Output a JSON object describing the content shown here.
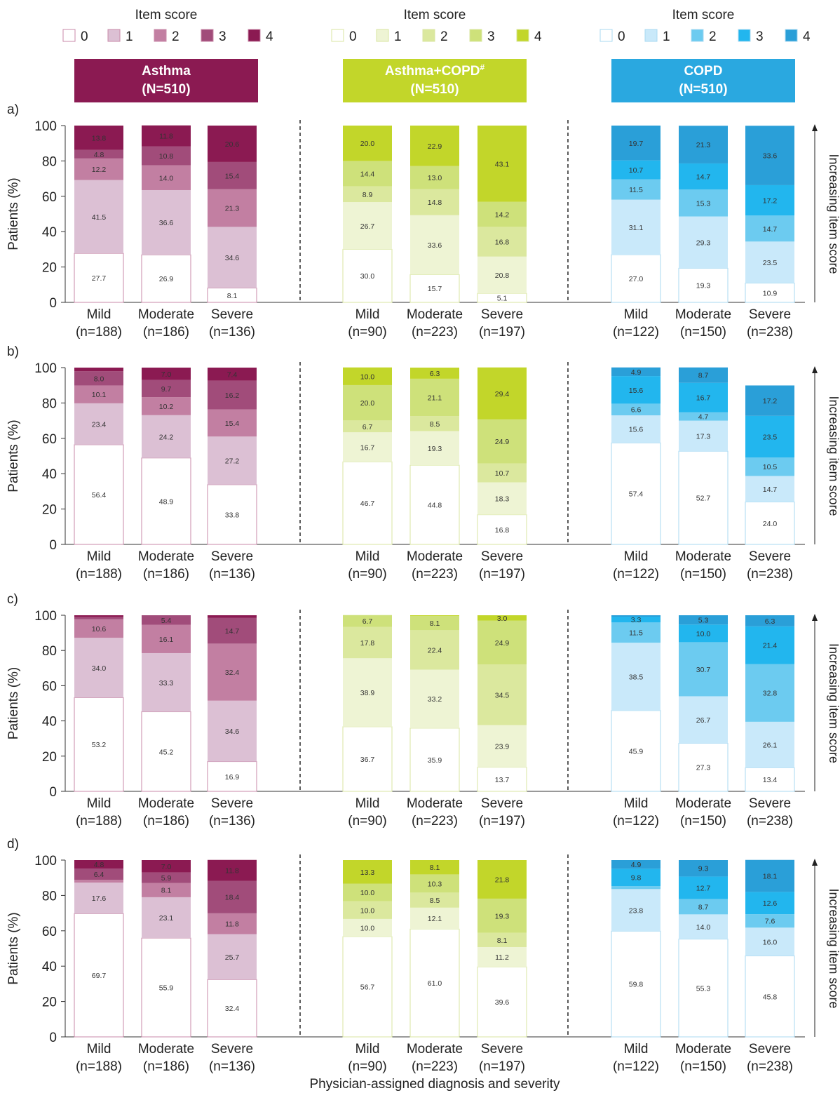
{
  "figure": {
    "legend_title": "Item score",
    "score_labels": [
      "0",
      "1",
      "2",
      "3",
      "4"
    ],
    "right_axis_label": "Increasing item score",
    "x_axis_title": "Physician-assigned diagnosis and severity"
  },
  "groups": [
    {
      "name": "Asthma",
      "n_label": "(N=510)",
      "header_color": "#8b1a52",
      "colors": [
        "#ffffff",
        "#dcc0d4",
        "#c27fa2",
        "#a14c7a",
        "#8b1a52"
      ],
      "edge_color": "#c98aa8",
      "categories": [
        {
          "name": "Mild",
          "n": "(n=188)"
        },
        {
          "name": "Moderate",
          "n": "(n=186)"
        },
        {
          "name": "Severe",
          "n": "(n=136)"
        }
      ]
    },
    {
      "name": "Asthma+COPD",
      "name_sup": "#",
      "n_label": "(N=510)",
      "header_color": "#c2d62a",
      "colors": [
        "#ffffff",
        "#eef4d4",
        "#dbe89e",
        "#cee17a",
        "#c2d62a"
      ],
      "edge_color": "#d8e6a0",
      "categories": [
        {
          "name": "Mild",
          "n": "(n=90)"
        },
        {
          "name": "Moderate",
          "n": "(n=223)"
        },
        {
          "name": "Severe",
          "n": "(n=197)"
        }
      ]
    },
    {
      "name": "COPD",
      "n_label": "(N=510)",
      "header_color": "#2aa8e0",
      "colors": [
        "#ffffff",
        "#c9e9fa",
        "#6ccbf0",
        "#22b6ee",
        "#2a9fd8"
      ],
      "edge_color": "#a8d9f2",
      "categories": [
        {
          "name": "Mild",
          "n": "(n=122)"
        },
        {
          "name": "Moderate",
          "n": "(n=150)"
        },
        {
          "name": "Severe",
          "n": "(n=238)"
        }
      ]
    }
  ],
  "chart_data": [
    {
      "type": "bar",
      "stacked": true,
      "panel_label": "a)",
      "ylabel": "Patients (%)",
      "ylim": [
        0,
        100
      ],
      "yticks": [
        0,
        20,
        40,
        60,
        80,
        100
      ],
      "bars": [
        {
          "values": [
            27.7,
            41.5,
            12.2,
            4.8,
            13.8
          ],
          "labels": [
            "27.7",
            "41.5",
            "12.2",
            "4.8",
            "13.8"
          ]
        },
        {
          "values": [
            26.9,
            36.6,
            14.0,
            10.8,
            11.8
          ],
          "labels": [
            "26.9",
            "36.6",
            "14.0",
            "10.8",
            "11.8"
          ]
        },
        {
          "values": [
            8.1,
            34.6,
            21.3,
            15.4,
            20.6
          ],
          "labels": [
            "8.1",
            "34.6",
            "21.3",
            "15.4",
            "20.6"
          ]
        },
        {
          "values": [
            30.0,
            26.7,
            8.9,
            14.4,
            20.0
          ],
          "labels": [
            "30.0",
            "26.7",
            "8.9",
            "14.4",
            "20.0"
          ]
        },
        {
          "values": [
            15.7,
            33.6,
            14.8,
            13.0,
            22.9
          ],
          "labels": [
            "15.7",
            "33.6",
            "14.8",
            "13.0",
            "22.9"
          ]
        },
        {
          "values": [
            5.1,
            20.8,
            16.8,
            14.2,
            43.1
          ],
          "labels": [
            "5.1",
            "20.8",
            "16.8",
            "14.2",
            "43.1"
          ]
        },
        {
          "values": [
            27.0,
            31.1,
            11.5,
            10.7,
            19.7
          ],
          "labels": [
            "27.0",
            "31.1",
            "11.5",
            "10.7",
            "19.7"
          ]
        },
        {
          "values": [
            19.3,
            29.3,
            15.3,
            14.7,
            21.3
          ],
          "labels": [
            "19.3",
            "29.3",
            "15.3",
            "14.7",
            "21.3"
          ]
        },
        {
          "values": [
            10.9,
            23.5,
            14.7,
            17.2,
            33.6
          ],
          "labels": [
            "10.9",
            "23.5",
            "14.7",
            "17.2",
            "33.6"
          ]
        }
      ]
    },
    {
      "type": "bar",
      "stacked": true,
      "panel_label": "b)",
      "ylabel": "Patients (%)",
      "ylim": [
        0,
        100
      ],
      "yticks": [
        0,
        20,
        40,
        60,
        80,
        100
      ],
      "bars": [
        {
          "values": [
            56.4,
            23.4,
            10.1,
            8.0,
            2.1
          ],
          "labels": [
            "56.4",
            "23.4",
            "10.1",
            "8.0",
            ""
          ]
        },
        {
          "values": [
            48.9,
            24.2,
            10.2,
            9.7,
            7.0
          ],
          "labels": [
            "48.9",
            "24.2",
            "10.2",
            "9.7",
            "7.0"
          ]
        },
        {
          "values": [
            33.8,
            27.2,
            15.4,
            16.2,
            7.4
          ],
          "labels": [
            "33.8",
            "27.2",
            "15.4",
            "16.2",
            "7.4"
          ]
        },
        {
          "values": [
            46.7,
            16.7,
            6.7,
            20.0,
            10.0
          ],
          "labels": [
            "46.7",
            "16.7",
            "6.7",
            "20.0",
            "10.0"
          ]
        },
        {
          "values": [
            44.8,
            19.3,
            8.5,
            21.1,
            6.3
          ],
          "labels": [
            "44.8",
            "19.3",
            "8.5",
            "21.1",
            "6.3"
          ]
        },
        {
          "values": [
            16.8,
            18.3,
            10.7,
            24.9,
            29.4
          ],
          "labels": [
            "16.8",
            "18.3",
            "10.7",
            "24.9",
            "29.4"
          ]
        },
        {
          "values": [
            57.4,
            15.6,
            6.6,
            15.6,
            4.9
          ],
          "labels": [
            "57.4",
            "15.6",
            "6.6",
            "15.6",
            "4.9"
          ]
        },
        {
          "values": [
            52.7,
            17.3,
            4.7,
            16.7,
            8.7
          ],
          "labels": [
            "52.7",
            "17.3",
            "4.7",
            "16.7",
            "8.7"
          ]
        },
        {
          "values": [
            24.0,
            14.7,
            10.5,
            23.5,
            17.2
          ],
          "labels": [
            "24.0",
            "14.7",
            "10.5",
            "23.5",
            "17.2"
          ]
        }
      ]
    },
    {
      "type": "bar",
      "stacked": true,
      "panel_label": "c)",
      "ylabel": "Patients (%)",
      "ylim": [
        0,
        100
      ],
      "yticks": [
        0,
        20,
        40,
        60,
        80,
        100
      ],
      "bars": [
        {
          "values": [
            53.2,
            34.0,
            10.6,
            1.1,
            1.1
          ],
          "labels": [
            "53.2",
            "34.0",
            "10.6",
            "",
            ""
          ]
        },
        {
          "values": [
            45.2,
            33.3,
            16.1,
            5.4,
            0.0
          ],
          "labels": [
            "45.2",
            "33.3",
            "16.1",
            "5.4",
            ""
          ]
        },
        {
          "values": [
            16.9,
            34.6,
            32.4,
            14.7,
            1.4
          ],
          "labels": [
            "16.9",
            "34.6",
            "32.4",
            "14.7",
            ""
          ]
        },
        {
          "values": [
            36.7,
            38.9,
            17.8,
            6.7,
            0.0
          ],
          "labels": [
            "36.7",
            "38.9",
            "17.8",
            "6.7",
            ""
          ]
        },
        {
          "values": [
            35.9,
            33.2,
            22.4,
            8.1,
            0.4
          ],
          "labels": [
            "35.9",
            "33.2",
            "22.4",
            "8.1",
            ""
          ]
        },
        {
          "values": [
            13.7,
            23.9,
            34.5,
            24.9,
            3.0
          ],
          "labels": [
            "13.7",
            "23.9",
            "34.5",
            "24.9",
            "3.0"
          ]
        },
        {
          "values": [
            45.9,
            38.5,
            11.5,
            3.3,
            0.8
          ],
          "labels": [
            "45.9",
            "38.5",
            "11.5",
            "3.3",
            ""
          ]
        },
        {
          "values": [
            27.3,
            26.7,
            30.7,
            10.0,
            5.3
          ],
          "labels": [
            "27.3",
            "26.7",
            "30.7",
            "10.0",
            "5.3"
          ]
        },
        {
          "values": [
            13.4,
            26.1,
            32.8,
            21.4,
            6.3
          ],
          "labels": [
            "13.4",
            "26.1",
            "32.8",
            "21.4",
            "6.3"
          ]
        }
      ]
    },
    {
      "type": "bar",
      "stacked": true,
      "panel_label": "d)",
      "ylabel": "Patients (%)",
      "ylim": [
        0,
        100
      ],
      "yticks": [
        0,
        20,
        40,
        60,
        80,
        100
      ],
      "bars": [
        {
          "values": [
            69.7,
            17.6,
            1.5,
            6.4,
            4.8
          ],
          "labels": [
            "69.7",
            "17.6",
            "",
            "6.4",
            "4.8"
          ]
        },
        {
          "values": [
            55.9,
            23.1,
            8.1,
            5.9,
            7.0
          ],
          "labels": [
            "55.9",
            "23.1",
            "8.1",
            "5.9",
            "7.0"
          ]
        },
        {
          "values": [
            32.4,
            25.7,
            11.8,
            18.4,
            11.8
          ],
          "labels": [
            "32.4",
            "25.7",
            "11.8",
            "18.4",
            "11.8"
          ]
        },
        {
          "values": [
            56.7,
            10.0,
            10.0,
            10.0,
            13.3
          ],
          "labels": [
            "56.7",
            "10.0",
            "10.0",
            "10.0",
            "13.3"
          ]
        },
        {
          "values": [
            61.0,
            12.1,
            8.5,
            10.3,
            8.1
          ],
          "labels": [
            "61.0",
            "12.1",
            "8.5",
            "10.3",
            "8.1"
          ]
        },
        {
          "values": [
            39.6,
            11.2,
            8.1,
            19.3,
            21.8
          ],
          "labels": [
            "39.6",
            "11.2",
            "8.1",
            "19.3",
            "21.8"
          ]
        },
        {
          "values": [
            59.8,
            23.8,
            1.7,
            9.8,
            4.9
          ],
          "labels": [
            "59.8",
            "23.8",
            "",
            "9.8",
            "4.9"
          ]
        },
        {
          "values": [
            55.3,
            14.0,
            8.7,
            12.7,
            9.3
          ],
          "labels": [
            "55.3",
            "14.0",
            "8.7",
            "12.7",
            "9.3"
          ]
        },
        {
          "values": [
            45.8,
            16.0,
            7.6,
            12.6,
            18.1
          ],
          "labels": [
            "45.8",
            "16.0",
            "7.6",
            "12.6",
            "18.1"
          ]
        }
      ]
    }
  ]
}
